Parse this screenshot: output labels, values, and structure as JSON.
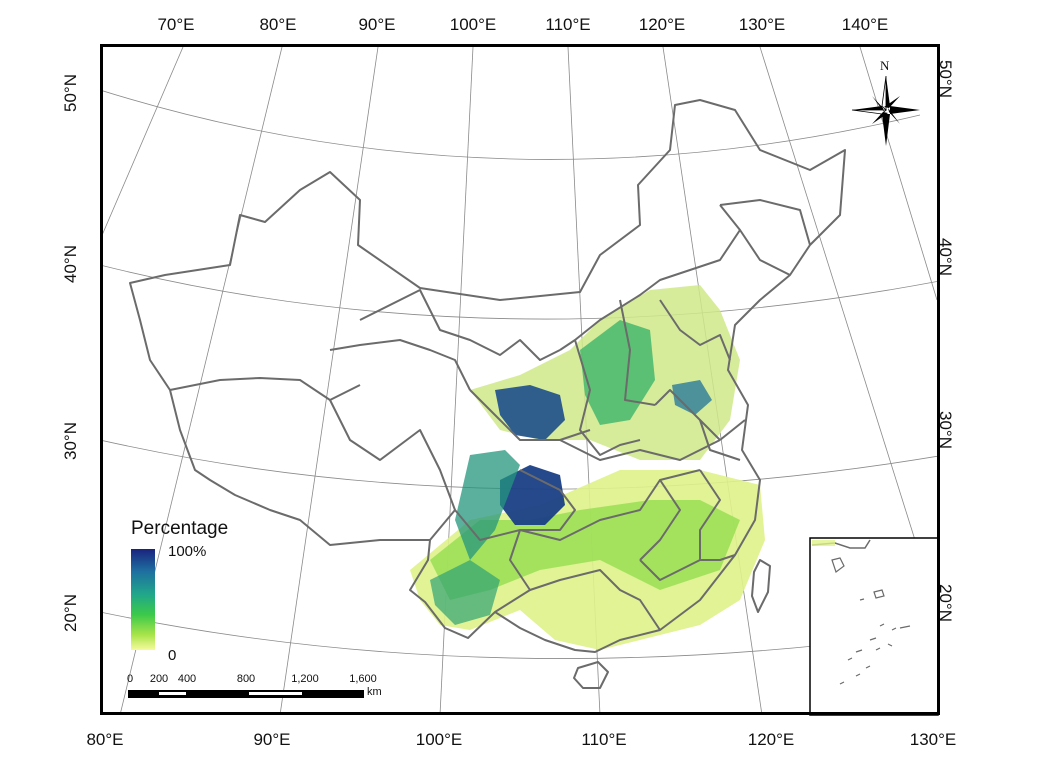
{
  "graticule": {
    "top_longitudes": [
      "70°E",
      "80°E",
      "90°E",
      "100°E",
      "110°E",
      "120°E",
      "130°E",
      "140°E"
    ],
    "bottom_longitudes": [
      "80°E",
      "90°E",
      "100°E",
      "110°E",
      "120°E",
      "130°E"
    ],
    "left_latitudes": [
      "50°N",
      "40°N",
      "30°N",
      "20°N"
    ],
    "right_latitudes": [
      "50°N",
      "40°N",
      "30°N",
      "20°N"
    ]
  },
  "legend": {
    "title": "Percentage",
    "max_label": "100%",
    "min_label": "0",
    "color_high": "#1a237e",
    "color_mid": "#20a78a",
    "color_low": "#f6fa9c"
  },
  "scale_bar": {
    "ticks": [
      "0",
      "200",
      "400",
      "800",
      "1,200",
      "1,600"
    ],
    "unit": "km"
  },
  "north_arrow": {
    "letter": "N"
  },
  "colors": {
    "boundary": "#6b6b6b",
    "graticule": "#8a8a8a",
    "frame": "#000000"
  }
}
